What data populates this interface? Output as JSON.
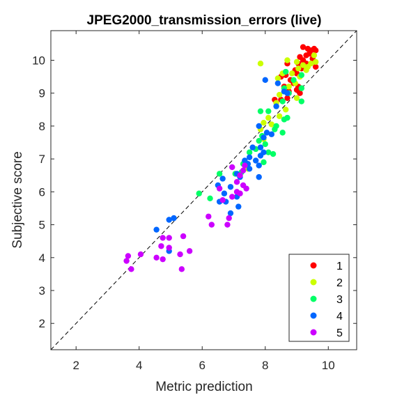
{
  "chart_data": {
    "type": "scatter",
    "title": "JPEG2000_transmission_errors (live)",
    "xlabel": "Metric prediction",
    "ylabel": "Subjective score",
    "xlim": [
      1.2,
      10.9
    ],
    "ylim": [
      1.2,
      10.9
    ],
    "xticks": [
      2,
      4,
      6,
      8,
      10
    ],
    "yticks": [
      2,
      3,
      4,
      5,
      6,
      7,
      8,
      9,
      10
    ],
    "grid": false,
    "reference_line": "y = x (dashed)",
    "legend_position": "bottom-right",
    "series": [
      {
        "name": "1",
        "color": "#ff0000",
        "points": [
          [
            9.2,
            10.4
          ],
          [
            9.35,
            10.35
          ],
          [
            9.45,
            10.3
          ],
          [
            9.55,
            10.35
          ],
          [
            9.6,
            10.3
          ],
          [
            9.4,
            10.2
          ],
          [
            9.3,
            10.15
          ],
          [
            9.1,
            10.1
          ],
          [
            9.5,
            10.05
          ],
          [
            9.2,
            10.0
          ],
          [
            9.05,
            9.9
          ],
          [
            8.7,
            9.9
          ],
          [
            9.3,
            9.9
          ],
          [
            9.6,
            9.8
          ],
          [
            9.15,
            9.75
          ],
          [
            8.95,
            9.7
          ],
          [
            9.0,
            9.6
          ],
          [
            8.65,
            9.55
          ],
          [
            8.5,
            9.5
          ],
          [
            8.8,
            9.4
          ],
          [
            8.9,
            9.3
          ],
          [
            9.05,
            9.2
          ],
          [
            8.6,
            9.2
          ],
          [
            9.0,
            9.1
          ],
          [
            8.75,
            9.05
          ],
          [
            9.1,
            9.0
          ],
          [
            8.7,
            8.85
          ],
          [
            8.3,
            8.8
          ],
          [
            8.5,
            8.8
          ]
        ]
      },
      {
        "name": "2",
        "color": "#ccff00",
        "points": [
          [
            7.85,
            9.9
          ],
          [
            8.7,
            10.0
          ],
          [
            9.0,
            9.95
          ],
          [
            9.2,
            9.85
          ],
          [
            9.35,
            9.8
          ],
          [
            9.55,
            10.15
          ],
          [
            9.45,
            9.9
          ],
          [
            9.6,
            9.95
          ],
          [
            9.3,
            9.7
          ],
          [
            9.05,
            9.75
          ],
          [
            8.85,
            9.6
          ],
          [
            9.1,
            9.5
          ],
          [
            8.55,
            9.6
          ],
          [
            8.4,
            9.45
          ],
          [
            8.75,
            9.2
          ],
          [
            8.95,
            9.3
          ],
          [
            8.6,
            9.05
          ],
          [
            8.45,
            8.95
          ],
          [
            9.0,
            8.85
          ],
          [
            8.35,
            8.7
          ],
          [
            8.65,
            8.5
          ],
          [
            8.45,
            8.3
          ],
          [
            8.1,
            8.25
          ],
          [
            8.2,
            8.05
          ],
          [
            7.95,
            8.1
          ],
          [
            7.85,
            7.9
          ],
          [
            7.95,
            7.6
          ],
          [
            7.45,
            6.7
          ]
        ]
      },
      {
        "name": "3",
        "color": "#00ff66",
        "points": [
          [
            8.65,
            9.65
          ],
          [
            9.15,
            9.55
          ],
          [
            8.9,
            9.4
          ],
          [
            8.6,
            9.15
          ],
          [
            8.75,
            9.0
          ],
          [
            9.15,
            9.15
          ],
          [
            9.15,
            8.75
          ],
          [
            8.55,
            8.75
          ],
          [
            7.85,
            8.45
          ],
          [
            8.1,
            8.45
          ],
          [
            8.7,
            8.25
          ],
          [
            8.6,
            8.2
          ],
          [
            8.35,
            8.0
          ],
          [
            8.3,
            7.9
          ],
          [
            8.55,
            7.8
          ],
          [
            7.9,
            7.7
          ],
          [
            7.8,
            7.55
          ],
          [
            8.0,
            7.45
          ],
          [
            8.1,
            7.2
          ],
          [
            8.25,
            7.15
          ],
          [
            7.7,
            7.3
          ],
          [
            7.95,
            6.9
          ],
          [
            7.5,
            7.2
          ],
          [
            7.3,
            6.85
          ],
          [
            7.25,
            6.6
          ],
          [
            7.05,
            6.55
          ],
          [
            6.55,
            6.55
          ],
          [
            5.9,
            5.95
          ],
          [
            6.25,
            5.8
          ]
        ]
      },
      {
        "name": "4",
        "color": "#0066ff",
        "points": [
          [
            8.0,
            9.4
          ],
          [
            8.4,
            9.3
          ],
          [
            8.6,
            9.05
          ],
          [
            8.7,
            9.0
          ],
          [
            8.35,
            8.6
          ],
          [
            7.8,
            8.0
          ],
          [
            8.05,
            7.8
          ],
          [
            8.2,
            7.75
          ],
          [
            7.95,
            7.65
          ],
          [
            7.6,
            7.35
          ],
          [
            7.85,
            7.35
          ],
          [
            7.95,
            7.2
          ],
          [
            7.85,
            7.1
          ],
          [
            7.5,
            7.05
          ],
          [
            7.35,
            6.95
          ],
          [
            7.7,
            6.95
          ],
          [
            7.45,
            6.85
          ],
          [
            7.8,
            6.8
          ],
          [
            7.5,
            6.7
          ],
          [
            7.1,
            6.55
          ],
          [
            7.2,
            6.45
          ],
          [
            7.8,
            6.45
          ],
          [
            6.65,
            6.4
          ],
          [
            6.5,
            6.2
          ],
          [
            6.9,
            6.15
          ],
          [
            6.7,
            5.95
          ],
          [
            7.1,
            5.85
          ],
          [
            6.55,
            5.7
          ],
          [
            6.75,
            5.7
          ],
          [
            7.15,
            5.55
          ],
          [
            6.9,
            5.35
          ],
          [
            5.1,
            5.2
          ],
          [
            4.95,
            5.15
          ],
          [
            4.55,
            4.85
          ],
          [
            4.95,
            4.2
          ]
        ]
      },
      {
        "name": "5",
        "color": "#cc00ff",
        "points": [
          [
            7.35,
            6.8
          ],
          [
            6.95,
            6.75
          ],
          [
            7.3,
            6.65
          ],
          [
            7.2,
            6.5
          ],
          [
            7.1,
            6.3
          ],
          [
            7.3,
            6.2
          ],
          [
            6.55,
            6.1
          ],
          [
            7.4,
            6.1
          ],
          [
            7.1,
            6.0
          ],
          [
            7.2,
            5.95
          ],
          [
            6.95,
            5.85
          ],
          [
            6.65,
            5.75
          ],
          [
            6.2,
            5.25
          ],
          [
            6.85,
            5.2
          ],
          [
            6.3,
            5.0
          ],
          [
            6.8,
            5.0
          ],
          [
            4.75,
            4.6
          ],
          [
            5.4,
            4.65
          ],
          [
            4.95,
            4.6
          ],
          [
            4.7,
            4.35
          ],
          [
            4.95,
            4.3
          ],
          [
            5.6,
            4.2
          ],
          [
            4.05,
            4.1
          ],
          [
            5.3,
            4.1
          ],
          [
            3.65,
            4.05
          ],
          [
            4.55,
            4.0
          ],
          [
            4.75,
            3.95
          ],
          [
            3.6,
            3.9
          ],
          [
            3.75,
            3.65
          ],
          [
            5.35,
            3.65
          ]
        ]
      }
    ]
  }
}
